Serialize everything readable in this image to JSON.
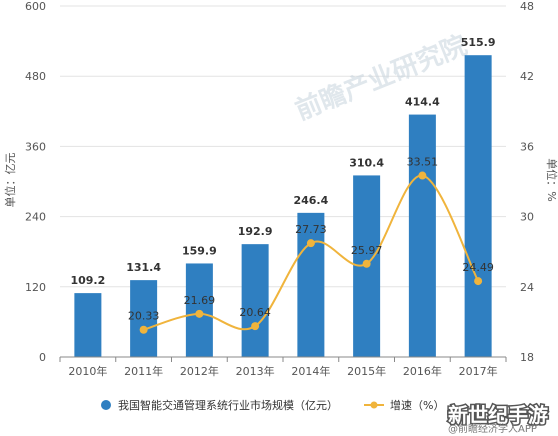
{
  "chart_data": {
    "type": "bar",
    "categories": [
      "2010年",
      "2011年",
      "2012年",
      "2013年",
      "2014年",
      "2015年",
      "2016年",
      "2017年"
    ],
    "series": [
      {
        "name": "我国智能交通管理系统行业市场规模（亿元）",
        "type": "bar",
        "axis": "left",
        "values": [
          109.2,
          131.4,
          159.9,
          192.9,
          246.4,
          310.4,
          414.4,
          515.9
        ],
        "color": "#2f7fc1"
      },
      {
        "name": "增速（%）",
        "type": "line",
        "axis": "right",
        "values": [
          null,
          20.33,
          21.69,
          20.64,
          27.73,
          25.97,
          33.51,
          24.49
        ],
        "color": "#f0b43c"
      }
    ],
    "y_left": {
      "label": "单位：亿元",
      "ticks": [
        "0",
        "120",
        "240",
        "360",
        "480",
        "600"
      ],
      "lim": [
        0,
        600
      ]
    },
    "y_right": {
      "label": "单位：%",
      "ticks": [
        "18",
        "24",
        "30",
        "36",
        "42",
        "48"
      ],
      "lim": [
        18,
        48
      ]
    },
    "grid": true,
    "legend_position": "bottom"
  },
  "watermark": "前瞻产业研究院",
  "corner_text": "新世纪手游",
  "source_text": "@前瞻经济学人APP"
}
